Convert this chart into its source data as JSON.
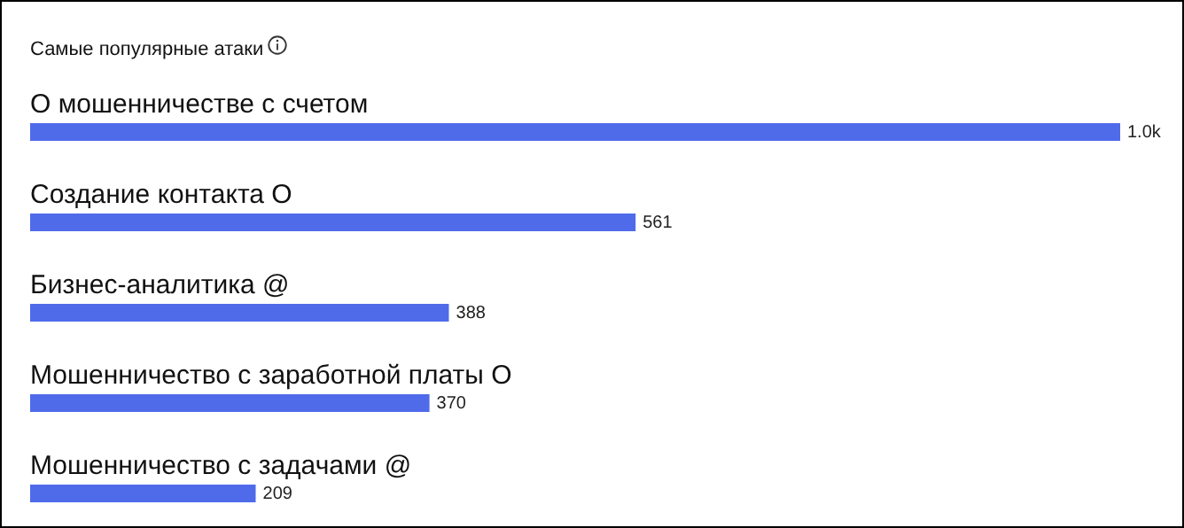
{
  "chart_data": {
    "type": "bar",
    "orientation": "horizontal",
    "title": "Самые популярные атаки",
    "categories": [
      "О мошенничестве с счетом",
      "Создание контакта О",
      "Бизнес-аналитика @",
      "Мошенничество с заработной платы О",
      "Мошенничество с задачами @"
    ],
    "values": [
      1010,
      561,
      388,
      370,
      209
    ],
    "value_labels": [
      "1.0k",
      "561",
      "388",
      "370",
      "209"
    ],
    "color": "#4f6bea"
  }
}
